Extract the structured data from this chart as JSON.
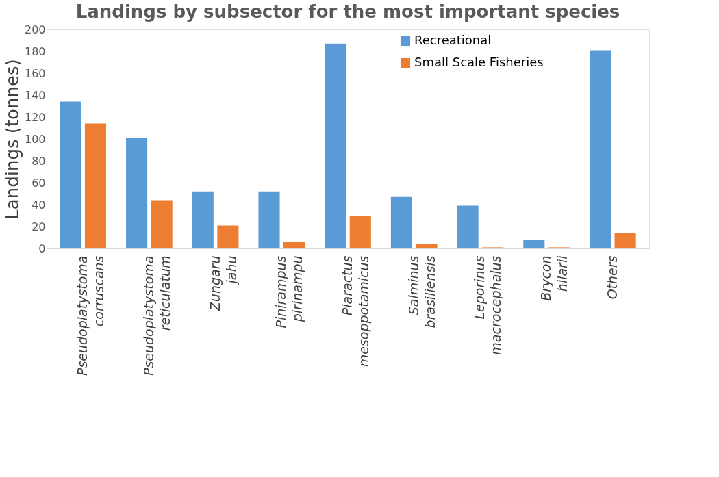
{
  "chart_data": {
    "type": "bar",
    "title": "Landings by subsector for the most important species",
    "ylabel": "Landings (tonnes)",
    "categories": [
      "Pseudoplatystoma corruscans",
      "Pseudoplatystoma reticulatum",
      "Zungaru jahu",
      "Pinirampus pirinampu",
      "Piaractus mesoppotamicus",
      "Salminus brasiliensis",
      "Leporinus macrocephalus",
      "Brycon hilarii",
      "Others"
    ],
    "series": [
      {
        "name": "Recreational",
        "color": "#5b9bd5",
        "values": [
          134,
          101,
          52,
          52,
          187,
          47,
          39,
          8,
          181
        ]
      },
      {
        "name": "Small Scale Fisheries",
        "color": "#ed7d31",
        "values": [
          114,
          44,
          21,
          6,
          30,
          4,
          1,
          1,
          14
        ]
      }
    ],
    "ylim": [
      0,
      200
    ],
    "yticks": [
      0,
      20,
      40,
      60,
      80,
      100,
      120,
      140,
      160,
      180,
      200
    ],
    "grid": false,
    "legend": "top right"
  }
}
